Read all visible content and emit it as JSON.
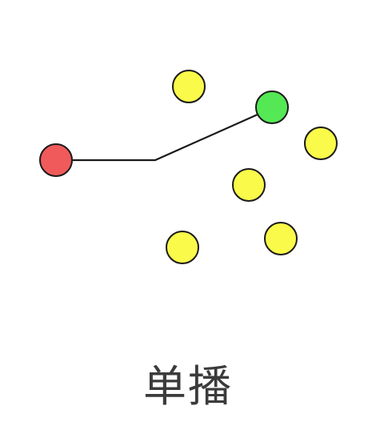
{
  "diagram": {
    "type": "network-unicast",
    "caption": "单播",
    "colors": {
      "source": "#f05a5a",
      "destination": "#55e855",
      "other": "#fafa4a",
      "stroke": "#1a1a1a"
    },
    "nodes": [
      {
        "id": "source-node",
        "role": "source"
      },
      {
        "id": "destination-node",
        "role": "destination"
      },
      {
        "id": "node-top-left",
        "role": "other"
      },
      {
        "id": "node-right",
        "role": "other"
      },
      {
        "id": "node-center",
        "role": "other"
      },
      {
        "id": "node-bottom-left",
        "role": "other"
      },
      {
        "id": "node-bottom-right",
        "role": "other"
      }
    ],
    "edges": [
      {
        "from": "source-node",
        "to": "destination-node",
        "directed": true
      }
    ]
  }
}
